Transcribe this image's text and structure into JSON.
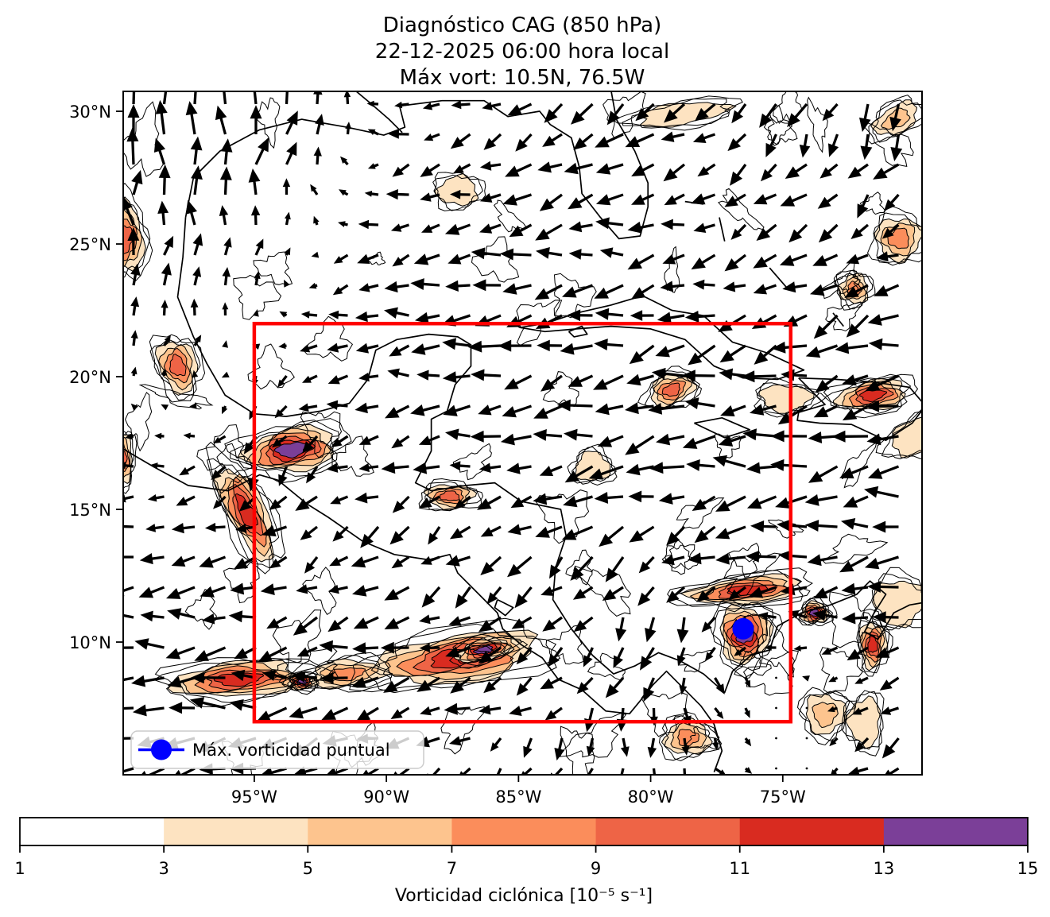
{
  "figure": {
    "title_line1": "Diagnóstico CAG (850 hPa)",
    "title_line2": "22-12-2025 06:00 hora local",
    "title_line3": "Máx vort: 10.5N, 76.5W",
    "background_color": "#ffffff"
  },
  "chart_data": {
    "type": "map",
    "subtype": "quiver-wind-vectors with filled vorticity contours",
    "extent": {
      "lon_min": -99.96,
      "lon_max": -69.73,
      "lat_min": 5.0,
      "lat_max": 30.75
    },
    "x_ticks": [
      {
        "lon": -95,
        "label": "95°W"
      },
      {
        "lon": -90,
        "label": "90°W"
      },
      {
        "lon": -85,
        "label": "85°W"
      },
      {
        "lon": -80,
        "label": "80°W"
      },
      {
        "lon": -75,
        "label": "75°W"
      }
    ],
    "y_ticks": [
      {
        "lat": 30,
        "label": "30°N"
      },
      {
        "lat": 25,
        "label": "25°N"
      },
      {
        "lat": 20,
        "label": "20°N"
      },
      {
        "lat": 15,
        "label": "15°N"
      },
      {
        "lat": 10,
        "label": "10°N"
      }
    ],
    "analysis_box": {
      "lat_min": 7.0,
      "lat_max": 22.0,
      "lon_min": -95.0,
      "lon_max": -74.7,
      "color": "#ff0000"
    },
    "max_vorticity_marker": {
      "lat": 10.5,
      "lon": -76.5,
      "color": "#0000ff"
    },
    "legend": {
      "label": "Máx. vorticidad puntual"
    },
    "colorbar": {
      "label": "Vorticidad ciclónica [10⁻⁵ s⁻¹]",
      "ticks": [
        1,
        3,
        5,
        7,
        9,
        11,
        13,
        15
      ],
      "segment_colors": [
        "#ffffff",
        "#fde3c1",
        "#fdc48e",
        "#fb8d5b",
        "#ee6446",
        "#d92b20",
        "#7b3f98"
      ]
    },
    "vorticity_features": [
      [
        -99.9,
        25.2,
        0.7,
        1.3,
        0,
        11
      ],
      [
        -97.9,
        20.4,
        0.7,
        1.0,
        -20,
        11
      ],
      [
        -93.6,
        17.25,
        1.7,
        0.8,
        -8,
        15
      ],
      [
        -95.3,
        14.9,
        1.9,
        0.7,
        63,
        13
      ],
      [
        -87.6,
        15.5,
        0.9,
        0.45,
        0,
        11
      ],
      [
        -95.6,
        8.6,
        2.4,
        0.65,
        -4,
        13
      ],
      [
        -93.2,
        8.5,
        0.55,
        0.3,
        0,
        15
      ],
      [
        -87.3,
        9.4,
        3.0,
        0.9,
        -8,
        13
      ],
      [
        -86.3,
        9.7,
        1.05,
        0.4,
        -12,
        15
      ],
      [
        -76.45,
        10.3,
        0.95,
        1.05,
        0,
        15
      ],
      [
        -76.4,
        11.95,
        2.1,
        0.5,
        -6,
        13
      ],
      [
        -73.8,
        11.1,
        0.5,
        0.4,
        0,
        15
      ],
      [
        -71.6,
        9.9,
        0.5,
        0.85,
        0,
        13
      ],
      [
        -71.6,
        19.3,
        1.3,
        0.55,
        -8,
        13
      ],
      [
        -79.2,
        19.5,
        0.85,
        0.55,
        -20,
        11
      ],
      [
        -70.6,
        25.2,
        0.85,
        0.8,
        0,
        9
      ],
      [
        -72.3,
        23.3,
        0.55,
        0.55,
        0,
        9
      ],
      [
        -78.8,
        29.9,
        1.7,
        0.4,
        -8,
        5
      ],
      [
        -70.7,
        29.7,
        0.9,
        0.5,
        -30,
        7
      ],
      [
        -78.6,
        6.4,
        0.85,
        0.65,
        0,
        9
      ],
      [
        -73.4,
        7.3,
        0.75,
        0.75,
        0,
        7
      ],
      [
        -71.9,
        7.0,
        0.6,
        0.9,
        0,
        5
      ],
      [
        -82.2,
        16.6,
        0.65,
        0.55,
        0,
        5
      ],
      [
        -74.9,
        19.2,
        0.95,
        0.5,
        0,
        5
      ],
      [
        -100.0,
        16.9,
        0.4,
        0.9,
        0,
        11
      ],
      [
        -91.5,
        8.8,
        1.4,
        0.5,
        -5,
        9
      ],
      [
        -70.6,
        11.5,
        0.95,
        0.85,
        0,
        5
      ],
      [
        -87.3,
        27.0,
        0.75,
        0.55,
        0,
        5
      ],
      [
        -69.9,
        17.8,
        1.1,
        0.6,
        -30,
        5
      ]
    ],
    "wind_grid": {
      "lons": [
        -99.5,
        -97.0,
        -94.5,
        -92.0,
        -89.5,
        -87.0,
        -84.5,
        -82.0,
        -79.5,
        -77.0,
        -74.5,
        -72.0,
        -69.5
      ],
      "lats": [
        30.0,
        27.3,
        24.6,
        21.9,
        19.2,
        16.5,
        13.8,
        11.1,
        8.4,
        5.7
      ],
      "u": [
        [
          0,
          0,
          1,
          1,
          -4,
          -5,
          -5,
          -6,
          -6,
          -4,
          -3,
          -2,
          -4
        ],
        [
          0,
          0,
          1,
          -1,
          -5,
          -5,
          -6,
          -6,
          -6,
          -5,
          -5,
          -4,
          -5
        ],
        [
          0,
          1,
          2,
          -3,
          -6,
          -6,
          -7,
          -7,
          -7,
          -6,
          -6,
          -6,
          -6
        ],
        [
          1,
          1,
          -1,
          -5,
          -6,
          -7,
          -7,
          -7,
          -7,
          -7,
          -7,
          -7,
          -7
        ],
        [
          0,
          -1,
          -2,
          -5,
          -6,
          -7,
          -8,
          -8,
          -8,
          -8,
          -8,
          -8,
          -8
        ],
        [
          -4,
          -4,
          -3,
          -5,
          -6,
          -6,
          -7,
          -8,
          -8,
          -8,
          -8,
          -8,
          -8
        ],
        [
          -6,
          -6,
          -6,
          -5,
          -5,
          -5,
          -6,
          -6,
          -6,
          -7,
          -8,
          -8,
          -8
        ],
        [
          -7,
          -7,
          -7,
          -6,
          -6,
          -5,
          -5,
          -4,
          -2,
          -5,
          -6,
          -7,
          -7
        ],
        [
          -8,
          -8,
          -8,
          -7,
          -7,
          -6,
          -5,
          -3,
          -1,
          2,
          0,
          -3,
          -5
        ],
        [
          -8,
          -8,
          -7,
          -6,
          -5,
          -4,
          -3,
          -1,
          1,
          2,
          0,
          -4,
          -5
        ]
      ],
      "v": [
        [
          9,
          9,
          7,
          5,
          -1,
          -2,
          -4,
          -4,
          -4,
          -5,
          -6,
          -7,
          -6
        ],
        [
          8,
          8,
          6,
          3,
          -2,
          -2,
          -3,
          -2,
          -2,
          -3,
          -4,
          -5,
          -4
        ],
        [
          7,
          6,
          4,
          -1,
          -2,
          -1,
          -1,
          -1,
          -1,
          -2,
          -3,
          -3,
          -3
        ],
        [
          5,
          4,
          1,
          -1,
          -1,
          -1,
          -1,
          -2,
          -2,
          -2,
          -3,
          -3,
          -2
        ],
        [
          1,
          0,
          -5,
          -1,
          -1,
          -1,
          -2,
          -2,
          -2,
          -2,
          -2,
          -2,
          -2
        ],
        [
          0,
          -1,
          -7,
          -2,
          -2,
          -2,
          -1,
          -1,
          -1,
          -1,
          -1,
          -1,
          -1
        ],
        [
          -1,
          -1,
          -2,
          -4,
          -4,
          -4,
          -5,
          -5,
          -4,
          -2,
          -1,
          -1,
          -1
        ],
        [
          -1,
          -1,
          -1,
          -2,
          -2,
          -3,
          -4,
          -5,
          -6,
          -3,
          0,
          -1,
          -2
        ],
        [
          -1,
          -1,
          -1,
          -1,
          -2,
          -2,
          -3,
          -5,
          -6,
          -4,
          1,
          -2,
          -4
        ],
        [
          -2,
          -2,
          -2,
          -2,
          -3,
          -3,
          -4,
          -5,
          -5,
          -2,
          1,
          -3,
          -5
        ]
      ]
    },
    "coastlines": [
      [
        [
          -97.6,
          26.0
        ],
        [
          -97.3,
          27.5
        ],
        [
          -96.3,
          28.5
        ],
        [
          -94.8,
          29.3
        ],
        [
          -93.2,
          29.7
        ],
        [
          -91.5,
          29.4
        ],
        [
          -90.1,
          29.1
        ],
        [
          -89.3,
          29.4
        ],
        [
          -89.5,
          30.2
        ],
        [
          -87.9,
          30.4
        ],
        [
          -86.3,
          30.4
        ],
        [
          -85.4,
          29.8
        ],
        [
          -84.2,
          30.0
        ],
        [
          -83.8,
          29.5
        ],
        [
          -83.0,
          29.0
        ],
        [
          -82.7,
          27.9
        ],
        [
          -82.6,
          26.9
        ],
        [
          -81.9,
          26.0
        ],
        [
          -81.2,
          25.2
        ],
        [
          -80.4,
          25.3
        ],
        [
          -80.1,
          26.4
        ],
        [
          -80.1,
          27.3
        ],
        [
          -80.6,
          28.5
        ],
        [
          -81.3,
          29.7
        ],
        [
          -81.5,
          30.8
        ]
      ],
      [
        [
          -97.6,
          26.0
        ],
        [
          -97.7,
          24.5
        ],
        [
          -97.9,
          23.0
        ],
        [
          -97.3,
          21.5
        ],
        [
          -96.8,
          20.5
        ],
        [
          -96.1,
          19.3
        ],
        [
          -95.0,
          18.6
        ],
        [
          -93.8,
          18.5
        ],
        [
          -92.5,
          18.7
        ],
        [
          -91.4,
          19.0
        ],
        [
          -90.7,
          19.9
        ],
        [
          -90.4,
          21.0
        ],
        [
          -89.6,
          21.4
        ],
        [
          -88.4,
          21.6
        ],
        [
          -87.3,
          21.5
        ],
        [
          -86.8,
          21.2
        ],
        [
          -86.8,
          20.4
        ],
        [
          -87.4,
          19.7
        ],
        [
          -87.7,
          18.7
        ],
        [
          -88.3,
          18.4
        ],
        [
          -88.3,
          17.2
        ],
        [
          -88.9,
          16.0
        ],
        [
          -88.3,
          15.7
        ],
        [
          -87.0,
          15.9
        ],
        [
          -85.9,
          16.0
        ],
        [
          -84.9,
          15.3
        ],
        [
          -83.4,
          15.0
        ],
        [
          -83.2,
          14.0
        ],
        [
          -83.6,
          12.8
        ],
        [
          -83.7,
          11.6
        ],
        [
          -83.0,
          10.5
        ],
        [
          -82.2,
          9.5
        ],
        [
          -81.4,
          8.8
        ],
        [
          -80.6,
          9.1
        ],
        [
          -79.7,
          9.6
        ],
        [
          -78.9,
          9.3
        ],
        [
          -78.0,
          8.8
        ],
        [
          -77.2,
          8.1
        ],
        [
          -76.9,
          8.9
        ],
        [
          -76.2,
          9.5
        ],
        [
          -75.5,
          9.7
        ],
        [
          -75.2,
          10.6
        ],
        [
          -74.3,
          11.1
        ],
        [
          -73.2,
          11.4
        ],
        [
          -72.2,
          11.8
        ],
        [
          -71.7,
          12.3
        ],
        [
          -71.1,
          11.8
        ],
        [
          -71.6,
          11.0
        ],
        [
          -71.9,
          10.4
        ],
        [
          -71.4,
          10.1
        ],
        [
          -70.8,
          11.1
        ],
        [
          -70.2,
          11.4
        ],
        [
          -69.6,
          11.5
        ]
      ],
      [
        [
          -100.0,
          17.3
        ],
        [
          -98.8,
          16.6
        ],
        [
          -97.5,
          15.9
        ],
        [
          -96.0,
          15.7
        ],
        [
          -94.8,
          16.3
        ],
        [
          -94.1,
          16.1
        ],
        [
          -93.0,
          15.2
        ],
        [
          -92.2,
          14.7
        ],
        [
          -90.9,
          13.8
        ],
        [
          -89.7,
          13.3
        ],
        [
          -88.4,
          13.1
        ],
        [
          -87.6,
          13.3
        ],
        [
          -87.3,
          12.6
        ],
        [
          -86.5,
          11.8
        ],
        [
          -85.8,
          11.1
        ],
        [
          -85.6,
          10.5
        ],
        [
          -84.9,
          9.9
        ],
        [
          -84.1,
          9.4
        ],
        [
          -83.5,
          8.6
        ],
        [
          -82.6,
          8.2
        ],
        [
          -81.7,
          7.4
        ],
        [
          -80.8,
          7.3
        ],
        [
          -80.3,
          7.9
        ],
        [
          -79.9,
          8.4
        ],
        [
          -79.4,
          8.9
        ],
        [
          -78.8,
          8.3
        ],
        [
          -78.1,
          7.6
        ],
        [
          -77.6,
          6.9
        ],
        [
          -77.3,
          5.9
        ],
        [
          -77.6,
          5.1
        ]
      ],
      [
        [
          -84.95,
          21.85
        ],
        [
          -84.0,
          22.0
        ],
        [
          -82.8,
          22.4
        ],
        [
          -81.5,
          22.7
        ],
        [
          -80.3,
          23.05
        ],
        [
          -79.2,
          22.5
        ],
        [
          -78.0,
          22.3
        ],
        [
          -76.9,
          21.3
        ],
        [
          -75.6,
          20.9
        ],
        [
          -74.2,
          20.25
        ],
        [
          -75.2,
          19.9
        ],
        [
          -76.5,
          19.95
        ],
        [
          -77.6,
          20.4
        ],
        [
          -78.7,
          21.4
        ],
        [
          -80.0,
          21.8
        ],
        [
          -81.5,
          21.9
        ],
        [
          -82.8,
          21.8
        ],
        [
          -84.0,
          21.7
        ],
        [
          -84.95,
          21.85
        ]
      ],
      [
        [
          -74.4,
          19.95
        ],
        [
          -73.0,
          19.9
        ],
        [
          -71.6,
          19.8
        ],
        [
          -70.2,
          19.6
        ],
        [
          -69.6,
          18.9
        ],
        [
          -70.1,
          18.25
        ],
        [
          -71.1,
          17.6
        ],
        [
          -72.4,
          18.2
        ],
        [
          -73.6,
          18.25
        ],
        [
          -74.45,
          18.35
        ],
        [
          -74.4,
          18.65
        ],
        [
          -73.4,
          18.95
        ],
        [
          -74.4,
          19.95
        ]
      ],
      [
        [
          -78.35,
          18.25
        ],
        [
          -77.3,
          18.45
        ],
        [
          -76.25,
          18.0
        ],
        [
          -77.2,
          17.7
        ],
        [
          -78.35,
          18.25
        ]
      ],
      [
        [
          -83.1,
          21.7
        ],
        [
          -82.6,
          21.9
        ],
        [
          -82.4,
          21.6
        ],
        [
          -82.9,
          21.5
        ],
        [
          -83.1,
          21.7
        ]
      ],
      [
        [
          -85.8,
          11.6
        ],
        [
          -85.2,
          11.3
        ],
        [
          -85.5,
          11.0
        ],
        [
          -85.9,
          11.3
        ],
        [
          -85.8,
          11.6
        ]
      ],
      [
        [
          -78.7,
          26.6
        ],
        [
          -78.0,
          26.5
        ]
      ],
      [
        [
          -77.4,
          26.0
        ],
        [
          -77.2,
          25.1
        ]
      ],
      [
        [
          -75.5,
          24.1
        ],
        [
          -74.8,
          23.3
        ]
      ],
      [
        [
          -73.1,
          22.4
        ],
        [
          -72.7,
          21.9
        ]
      ],
      [
        [
          -91.2,
          30.8
        ],
        [
          -90.6,
          30.3
        ],
        [
          -89.9,
          29.7
        ],
        [
          -89.4,
          29.2
        ]
      ]
    ]
  }
}
